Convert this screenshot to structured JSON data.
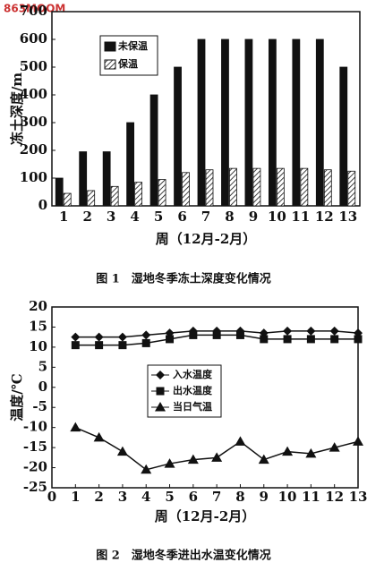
{
  "watermark": "863MOOM",
  "chart_data": [
    {
      "type": "bar",
      "title": "图 1　湿地冬季冻土深度变化情况",
      "x_label": "周（12月-2月）",
      "y_label": "冻土深度/m",
      "categories": [
        "1",
        "2",
        "3",
        "4",
        "5",
        "6",
        "7",
        "8",
        "9",
        "10",
        "11",
        "12",
        "13"
      ],
      "series": [
        {
          "name": "未保温",
          "color": "#111111",
          "hatch": false,
          "values": [
            100,
            195,
            195,
            300,
            400,
            500,
            600,
            600,
            600,
            600,
            600,
            600,
            500
          ]
        },
        {
          "name": "保温",
          "color": "#111111",
          "hatch": true,
          "values": [
            45,
            55,
            70,
            85,
            95,
            120,
            130,
            135,
            135,
            135,
            135,
            130,
            125
          ]
        }
      ],
      "ylim": [
        0,
        700
      ],
      "yticks": [
        0,
        100,
        200,
        300,
        400,
        500,
        600,
        700
      ],
      "legend": "upper-left"
    },
    {
      "type": "line",
      "title": "图 2　湿地冬季进出水温变化情况",
      "x_label": "周（12月-2月）",
      "y_label": "温度/℃",
      "x": [
        1,
        2,
        3,
        4,
        5,
        6,
        7,
        8,
        9,
        10,
        11,
        12,
        13
      ],
      "series": [
        {
          "name": "入水温度",
          "color": "#111111",
          "marker": "diamond",
          "values": [
            12.5,
            12.5,
            12.5,
            13,
            13.5,
            14,
            14,
            14,
            13.5,
            14,
            14,
            14,
            13.5
          ]
        },
        {
          "name": "出水温度",
          "color": "#111111",
          "marker": "square",
          "values": [
            10.5,
            10.5,
            10.5,
            11,
            12,
            13,
            13,
            13,
            12,
            12,
            12,
            12,
            12
          ]
        },
        {
          "name": "当日气温",
          "color": "#111111",
          "marker": "triangle",
          "values": [
            -10,
            -12.5,
            -16,
            -20.5,
            -19,
            -18,
            -17.5,
            -13.5,
            -18,
            -16,
            -16.5,
            -15,
            -13.5
          ]
        }
      ],
      "xlim": [
        0,
        13
      ],
      "xticks": [
        0,
        1,
        2,
        3,
        4,
        5,
        6,
        7,
        8,
        9,
        10,
        11,
        12,
        13
      ],
      "ylim": [
        -25,
        20
      ],
      "yticks": [
        -25,
        -20,
        -15,
        -10,
        -5,
        0,
        5,
        10,
        15,
        20
      ],
      "legend": "center"
    }
  ]
}
